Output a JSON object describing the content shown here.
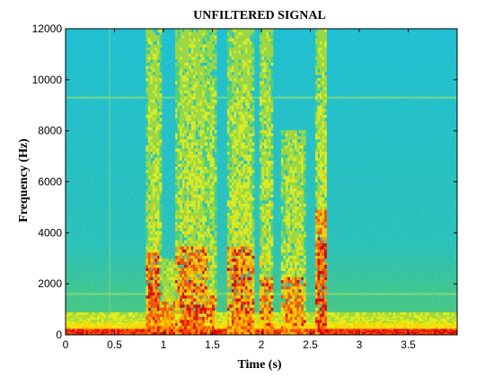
{
  "chart_data": {
    "type": "heatmap",
    "title": "UNFILTERED SIGNAL",
    "xlabel": "Time (s)",
    "ylabel": "Frequency (Hz)",
    "xlim": [
      0,
      4
    ],
    "ylim": [
      0,
      12000
    ],
    "x_ticks": [
      {
        "value": 0,
        "label": "0"
      },
      {
        "value": 0.5,
        "label": "0.5"
      },
      {
        "value": 1,
        "label": "1"
      },
      {
        "value": 1.5,
        "label": "1.5"
      },
      {
        "value": 2,
        "label": "2"
      },
      {
        "value": 2.5,
        "label": "2.5"
      },
      {
        "value": 3,
        "label": "3"
      },
      {
        "value": 3.5,
        "label": "3.5"
      }
    ],
    "y_ticks": [
      {
        "value": 0,
        "label": "0"
      },
      {
        "value": 2000,
        "label": "2000"
      },
      {
        "value": 4000,
        "label": "4000"
      },
      {
        "value": 6000,
        "label": "6000"
      },
      {
        "value": 8000,
        "label": "8000"
      },
      {
        "value": 10000,
        "label": "10000"
      },
      {
        "value": 12000,
        "label": "12000"
      }
    ],
    "grid": false,
    "colormap": [
      "#00b4ff",
      "#1fd6c8",
      "#4fd27a",
      "#a6d93a",
      "#e6ee1a",
      "#ffd200",
      "#ff9a00",
      "#ff4a00",
      "#e00000"
    ],
    "background_color": "#36d0c0",
    "segments": [
      {
        "t_start": 0.82,
        "t_end": 0.96,
        "f_low_intense": 2000,
        "f_high_intense": 3200,
        "f_bright": 12000,
        "intensity": 0.9
      },
      {
        "t_start": 0.96,
        "t_end": 1.12,
        "f_low_intense": 300,
        "f_high_intense": 1200,
        "f_bright": 3000,
        "intensity": 0.75
      },
      {
        "t_start": 1.12,
        "t_end": 1.45,
        "f_low_intense": 1200,
        "f_high_intense": 3400,
        "f_bright": 12000,
        "intensity": 0.85
      },
      {
        "t_start": 1.45,
        "t_end": 1.52,
        "f_low_intense": 0,
        "f_high_intense": 1500,
        "f_bright": 12000,
        "intensity": 0.95
      },
      {
        "t_start": 1.65,
        "t_end": 1.92,
        "f_low_intense": 0,
        "f_high_intense": 3400,
        "f_bright": 12000,
        "intensity": 0.95
      },
      {
        "t_start": 1.98,
        "t_end": 2.1,
        "f_low_intense": 0,
        "f_high_intense": 2200,
        "f_bright": 12000,
        "intensity": 0.85
      },
      {
        "t_start": 2.2,
        "t_end": 2.45,
        "f_low_intense": 0,
        "f_high_intense": 2200,
        "f_bright": 8000,
        "intensity": 0.8
      },
      {
        "t_start": 2.55,
        "t_end": 2.65,
        "f_low_intense": 3800,
        "f_high_intense": 4800,
        "f_bright": 12000,
        "intensity": 0.7
      }
    ],
    "horizontal_lines_hz": [
      9300,
      1600
    ],
    "vertical_lines_s": [
      0.45
    ]
  }
}
